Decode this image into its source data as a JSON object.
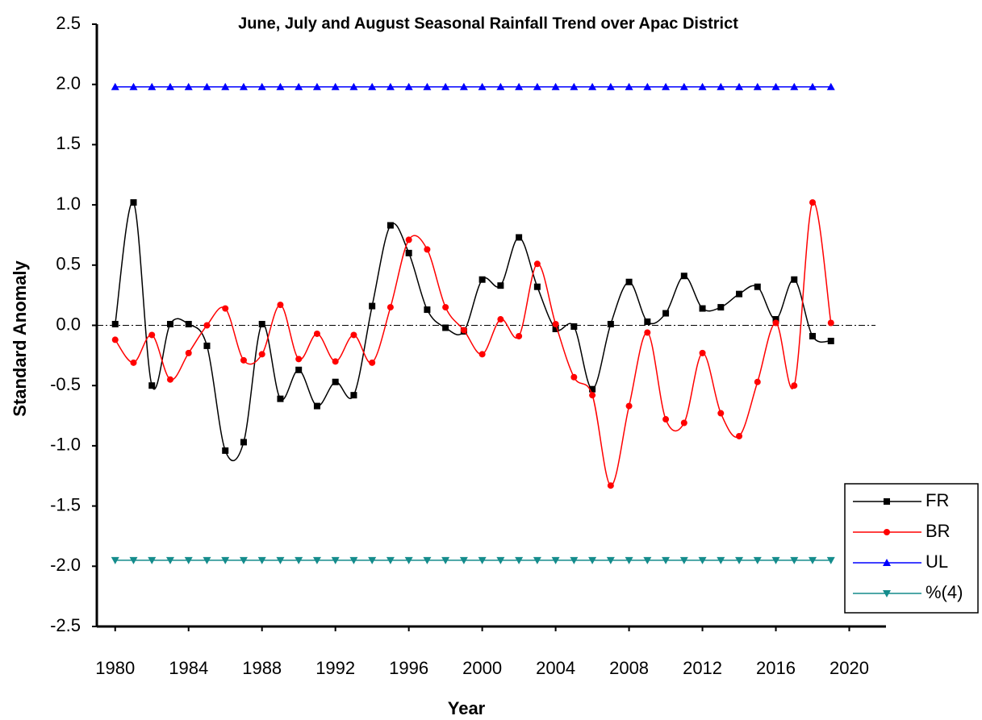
{
  "chart_data": {
    "type": "line",
    "title": "June, July and August Seasonal Rainfall Trend over Apac District",
    "x_label": "Year",
    "y_label": "Standard Anomaly",
    "x": [
      1980,
      1981,
      1982,
      1983,
      1984,
      1985,
      1986,
      1987,
      1988,
      1989,
      1990,
      1991,
      1992,
      1993,
      1994,
      1995,
      1996,
      1997,
      1998,
      1999,
      2000,
      2001,
      2002,
      2003,
      2004,
      2005,
      2006,
      2007,
      2008,
      2009,
      2010,
      2011,
      2012,
      2013,
      2014,
      2015,
      2016,
      2017,
      2018,
      2019
    ],
    "series": [
      {
        "name": "FR",
        "color": "#000000",
        "marker": "square",
        "smooth": true,
        "values": [
          0.01,
          1.02,
          -0.5,
          0.01,
          0.01,
          -0.17,
          -1.04,
          -0.97,
          0.01,
          -0.61,
          -0.37,
          -0.67,
          -0.47,
          -0.58,
          0.16,
          0.83,
          0.6,
          0.13,
          -0.02,
          -0.05,
          0.38,
          0.33,
          0.73,
          0.32,
          -0.03,
          -0.01,
          -0.53,
          0.01,
          0.36,
          0.03,
          0.1,
          0.41,
          0.14,
          0.15,
          0.26,
          0.32,
          0.05,
          0.38,
          -0.09,
          -0.13
        ]
      },
      {
        "name": "BR",
        "color": "#ff0000",
        "marker": "circle",
        "smooth": true,
        "values": [
          -0.12,
          -0.31,
          -0.08,
          -0.45,
          -0.23,
          0.0,
          0.14,
          -0.29,
          -0.24,
          0.17,
          -0.28,
          -0.07,
          -0.3,
          -0.08,
          -0.31,
          0.15,
          0.71,
          0.63,
          0.15,
          -0.04,
          -0.24,
          0.05,
          -0.09,
          0.51,
          0.01,
          -0.43,
          -0.58,
          -1.33,
          -0.67,
          -0.06,
          -0.78,
          -0.81,
          -0.23,
          -0.73,
          -0.92,
          -0.47,
          0.02,
          -0.5,
          1.02,
          0.02
        ]
      },
      {
        "name": "UL",
        "color": "#0000ff",
        "marker": "triangle-up",
        "smooth": false,
        "values": [
          1.98,
          1.98,
          1.98,
          1.98,
          1.98,
          1.98,
          1.98,
          1.98,
          1.98,
          1.98,
          1.98,
          1.98,
          1.98,
          1.98,
          1.98,
          1.98,
          1.98,
          1.98,
          1.98,
          1.98,
          1.98,
          1.98,
          1.98,
          1.98,
          1.98,
          1.98,
          1.98,
          1.98,
          1.98,
          1.98,
          1.98,
          1.98,
          1.98,
          1.98,
          1.98,
          1.98,
          1.98,
          1.98,
          1.98,
          1.98
        ]
      },
      {
        "name": "%(4)",
        "color": "#148c8c",
        "marker": "triangle-down",
        "smooth": false,
        "values": [
          -1.95,
          -1.95,
          -1.95,
          -1.95,
          -1.95,
          -1.95,
          -1.95,
          -1.95,
          -1.95,
          -1.95,
          -1.95,
          -1.95,
          -1.95,
          -1.95,
          -1.95,
          -1.95,
          -1.95,
          -1.95,
          -1.95,
          -1.95,
          -1.95,
          -1.95,
          -1.95,
          -1.95,
          -1.95,
          -1.95,
          -1.95,
          -1.95,
          -1.95,
          -1.95,
          -1.95,
          -1.95,
          -1.95,
          -1.95,
          -1.95,
          -1.95,
          -1.95,
          -1.95,
          -1.95,
          -1.95
        ]
      }
    ],
    "reference_line": 0,
    "xlim": [
      1979,
      2022
    ],
    "xticks": [
      1980,
      1984,
      1988,
      1992,
      1996,
      2000,
      2004,
      2008,
      2012,
      2016,
      2020
    ],
    "ylim": [
      -2.5,
      2.5
    ],
    "yticks": [
      {
        "value": -2.5,
        "label": "-2.5"
      },
      {
        "value": -2,
        "label": "-2.0"
      },
      {
        "value": -1.5,
        "label": "-1.5"
      },
      {
        "value": -1,
        "label": "-1.0"
      },
      {
        "value": -0.5,
        "label": "-0.5"
      },
      {
        "value": 0,
        "label": "0.0"
      },
      {
        "value": 0.5,
        "label": "0.5"
      },
      {
        "value": 1,
        "label": "1.0"
      },
      {
        "value": 1.5,
        "label": "1.5"
      },
      {
        "value": 2,
        "label": "2.0"
      },
      {
        "value": 2.5,
        "label": "2.5"
      }
    ],
    "grid": false,
    "legend": "lower right"
  }
}
